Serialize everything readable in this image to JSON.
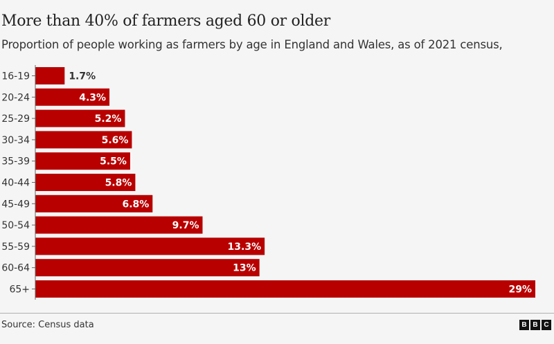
{
  "chart_data": {
    "type": "bar",
    "orientation": "horizontal",
    "title": "More than 40% of farmers aged 60 or older",
    "subtitle": "Proportion of people working as farmers by age in England and Wales, as of 2021 census,",
    "categories": [
      "16-19",
      "20-24",
      "25-29",
      "30-34",
      "35-39",
      "40-44",
      "45-49",
      "50-54",
      "55-59",
      "60-64",
      "65+"
    ],
    "values": [
      1.7,
      4.3,
      5.2,
      5.6,
      5.5,
      5.8,
      6.8,
      9.7,
      13.3,
      13,
      29
    ],
    "data_labels": [
      "1.7%",
      "4.3%",
      "5.2%",
      "5.6%",
      "5.5%",
      "5.8%",
      "6.8%",
      "9.7%",
      "13.3%",
      "13%",
      "29%"
    ],
    "xlim": [
      0,
      29
    ],
    "xlabel": "",
    "ylabel": "",
    "grid": false,
    "bar_color": "#b80000"
  },
  "footer": {
    "source": "Source: Census data",
    "logo": [
      "B",
      "B",
      "C"
    ]
  }
}
